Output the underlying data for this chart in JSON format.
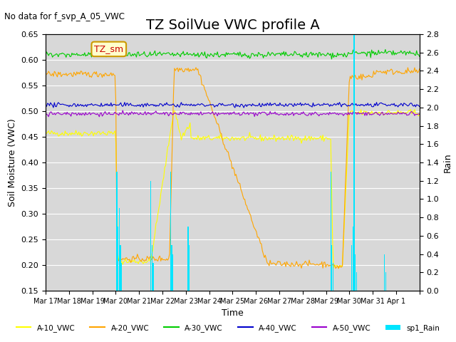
{
  "title": "TZ SoilVue VWC profile A",
  "no_data_text": "No data for f_svp_A_05_VWC",
  "annotation_text": "TZ_sm",
  "xlabel": "Time",
  "ylabel": "Soil Moisture (VWC)",
  "ylabel_right": "Rain",
  "ylim_left": [
    0.15,
    0.65
  ],
  "ylim_right": [
    0.0,
    2.8
  ],
  "bg_color": "#d8d8d8",
  "fig_color": "#ffffff",
  "series_colors": {
    "A10": "#ffff00",
    "A20": "#ffa500",
    "A30": "#00cc00",
    "A40": "#0000cc",
    "A50": "#9900cc",
    "Rain": "#00e5ff"
  },
  "x_tick_positions": [
    0,
    1,
    2,
    3,
    4,
    5,
    6,
    7,
    8,
    9,
    10,
    11,
    12,
    13,
    14,
    15,
    16
  ],
  "x_tick_labels": [
    "Mar 17",
    "Mar 18",
    "Mar 19",
    "Mar 20",
    "Mar 21",
    "Mar 22",
    "Mar 23",
    "Mar 24",
    "Mar 25",
    "Mar 26",
    "Mar 27",
    "Mar 28",
    "Mar 29",
    "Mar 30",
    "Mar 31",
    "Apr 1",
    ""
  ],
  "num_days": 16,
  "title_fontsize": 14,
  "label_fontsize": 9,
  "tick_fontsize": 8,
  "yticks_left": [
    0.15,
    0.2,
    0.25,
    0.3,
    0.35,
    0.4,
    0.45,
    0.5,
    0.55,
    0.6,
    0.65
  ],
  "yticks_right": [
    0.0,
    0.2,
    0.4,
    0.6,
    0.8,
    1.0,
    1.2,
    1.4,
    1.6,
    1.8,
    2.0,
    2.2,
    2.4,
    2.6,
    2.8
  ],
  "rain_times": [
    3.05,
    3.1,
    3.15,
    3.2,
    3.25,
    4.5,
    4.55,
    4.6,
    5.35,
    5.4,
    5.45,
    6.1,
    6.15,
    12.2,
    12.25,
    12.3,
    13.1,
    13.15,
    13.2,
    13.25,
    13.3,
    14.5,
    14.55
  ],
  "rain_values": [
    1.3,
    0.7,
    0.9,
    0.5,
    0.3,
    1.2,
    0.5,
    0.3,
    1.3,
    0.5,
    0.4,
    0.7,
    0.5,
    1.3,
    0.5,
    0.3,
    0.5,
    0.7,
    2.8,
    0.4,
    0.2,
    0.4,
    0.2
  ]
}
